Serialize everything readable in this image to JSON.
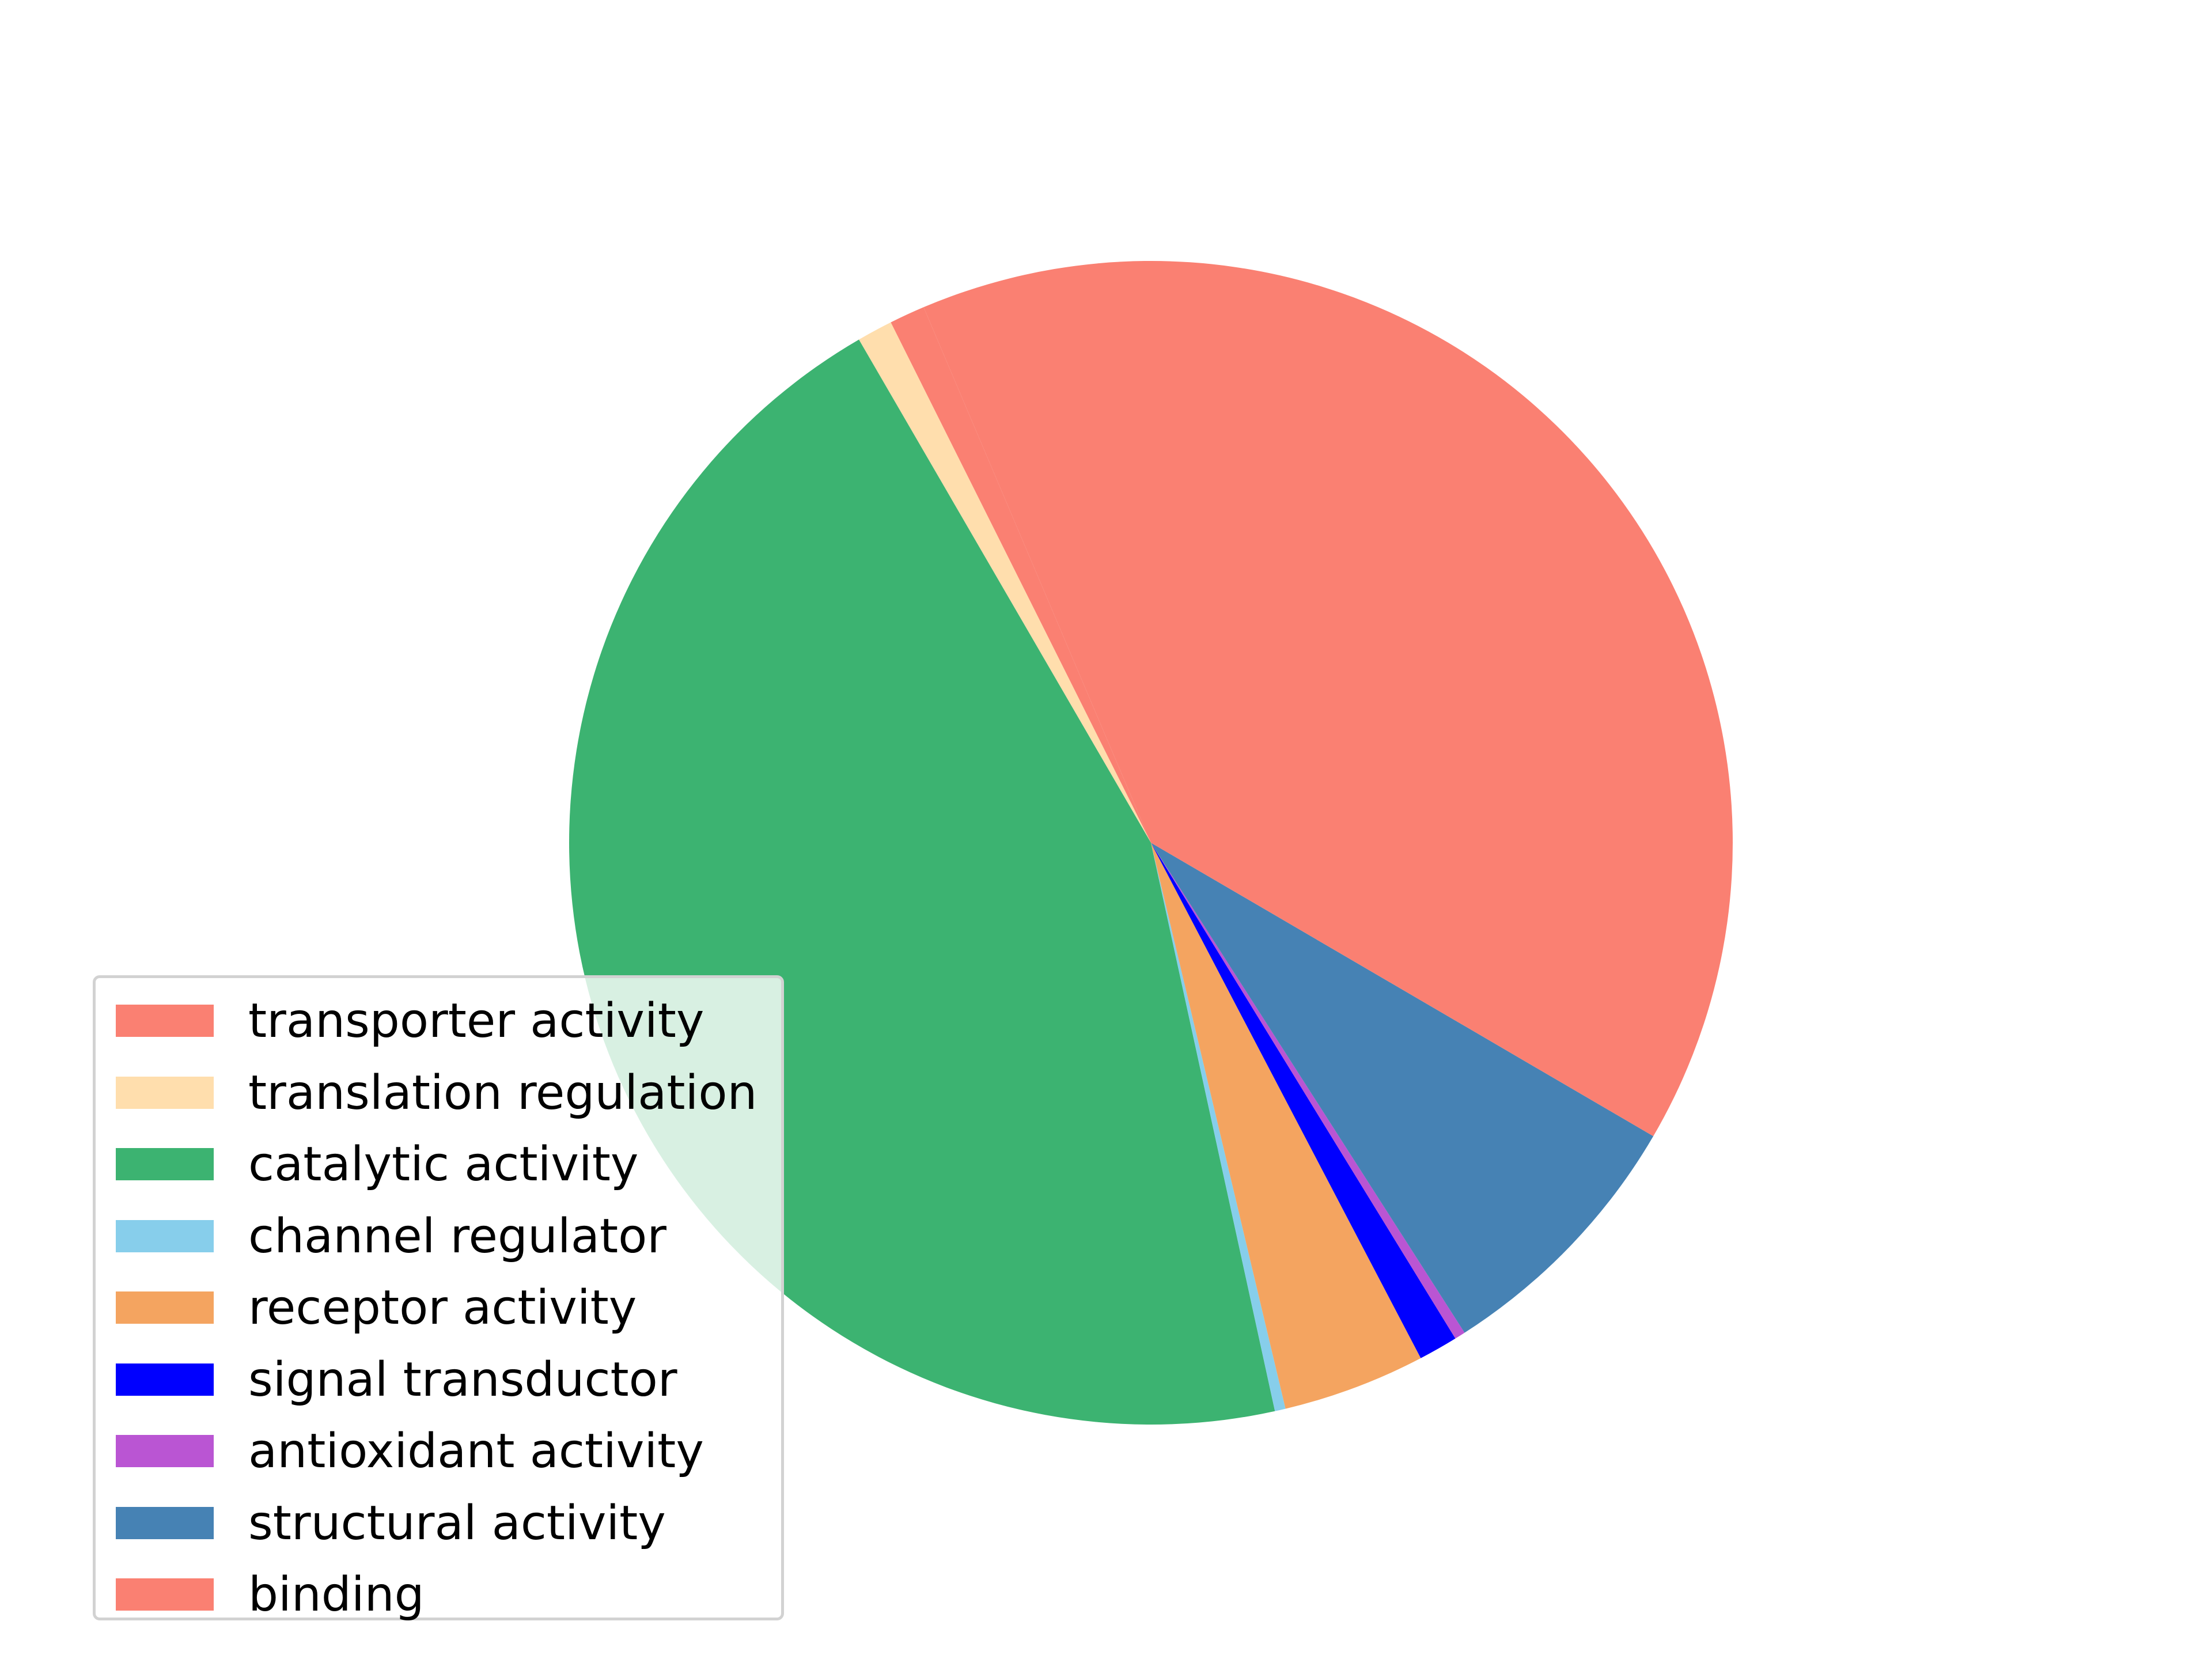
{
  "chart_data": {
    "type": "pie",
    "title": "",
    "labels": [
      "transporter activity",
      "translation regulation",
      "catalytic activity",
      "channel regulator",
      "receptor activity",
      "signal transductor",
      "antioxidant activity",
      "structural activity",
      "binding"
    ],
    "values": [
      1.0,
      1.0,
      45.5,
      0.3,
      4.0,
      1.1,
      0.3,
      7.6,
      40.2
    ],
    "units": "percent of total (estimated from slice angles)",
    "colors": [
      "#fa8072",
      "#ffdead",
      "#3cb371",
      "#87ceeb",
      "#f4a460",
      "#0000ff",
      "#ba55d3",
      "#4682b4",
      "#fa8072"
    ],
    "start_angle_deg": 113,
    "direction": "counterclockwise",
    "legend": {
      "placement": "lower-left"
    }
  }
}
